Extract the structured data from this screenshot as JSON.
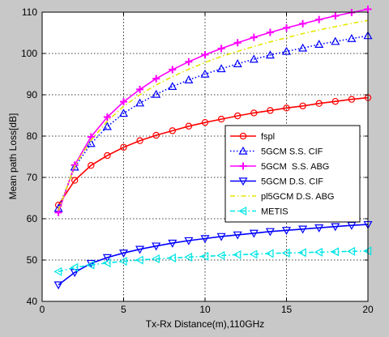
{
  "chart_data": {
    "type": "line",
    "title": "",
    "xlabel": "Tx-Rx Distance(m),110GHz",
    "ylabel": "Mean path Loss[dB]",
    "xlim": [
      0,
      20
    ],
    "ylim": [
      40,
      110
    ],
    "xticks": [
      0,
      5,
      10,
      15,
      20
    ],
    "yticks": [
      40,
      50,
      60,
      70,
      80,
      90,
      100,
      110
    ],
    "grid": true,
    "legend_position": "center-right",
    "x": [
      1,
      2,
      3,
      4,
      5,
      6,
      7,
      8,
      9,
      10,
      11,
      12,
      13,
      14,
      15,
      16,
      17,
      18,
      19,
      20
    ],
    "series": [
      {
        "name": "fspl",
        "color": "#ff0000",
        "dash": "solid",
        "marker": "circle",
        "values": [
          63.3,
          69.3,
          72.9,
          75.3,
          77.3,
          78.9,
          80.2,
          81.3,
          82.4,
          83.3,
          84.1,
          84.9,
          85.6,
          86.2,
          86.8,
          87.3,
          87.9,
          88.4,
          88.9,
          89.3
        ]
      },
      {
        "name": "5GCM S.S. CIF",
        "color": "#0000ff",
        "dash": "dotted",
        "marker": "triangle-up",
        "values": [
          62.5,
          72.5,
          78.2,
          82.3,
          85.5,
          88.0,
          90.1,
          92.0,
          93.6,
          95.0,
          96.3,
          97.5,
          98.6,
          99.6,
          100.5,
          101.3,
          102.2,
          102.9,
          103.6,
          104.3
        ]
      },
      {
        "name": "5GCM  S.S. ABG",
        "color": "#ff00ff",
        "dash": "solid",
        "marker": "plus",
        "values": [
          61.5,
          73.0,
          79.8,
          84.6,
          88.3,
          91.3,
          93.9,
          96.1,
          98.0,
          99.7,
          101.2,
          102.6,
          103.9,
          105.1,
          106.2,
          107.2,
          108.2,
          109.1,
          109.9,
          110.7
        ]
      },
      {
        "name": "5GCM D.S. CIF",
        "color": "#0000ff",
        "dash": "solid",
        "marker": "triangle-down",
        "values": [
          44.0,
          47.0,
          49.2,
          50.6,
          51.7,
          52.6,
          53.4,
          54.1,
          54.7,
          55.2,
          55.7,
          56.1,
          56.5,
          56.9,
          57.2,
          57.5,
          57.8,
          58.1,
          58.4,
          58.6
        ]
      },
      {
        "name": "pl5GCM D.S. ABG",
        "color": "#e6e600",
        "dash": "dashdot",
        "marker": "none",
        "values": [
          62.0,
          72.8,
          79.0,
          83.6,
          87.2,
          90.0,
          92.4,
          94.4,
          96.2,
          97.8,
          99.3,
          100.5,
          101.7,
          102.8,
          103.8,
          104.8,
          105.7,
          106.5,
          107.3,
          108.0
        ]
      },
      {
        "name": "METIS",
        "color": "#00e5e5",
        "dash": "dashdot",
        "marker": "triangle-left",
        "values": [
          47.2,
          48.2,
          48.8,
          49.3,
          49.7,
          50.0,
          50.3,
          50.5,
          50.7,
          50.9,
          51.1,
          51.3,
          51.4,
          51.6,
          51.7,
          51.8,
          51.9,
          52.0,
          52.1,
          52.2
        ]
      }
    ]
  }
}
